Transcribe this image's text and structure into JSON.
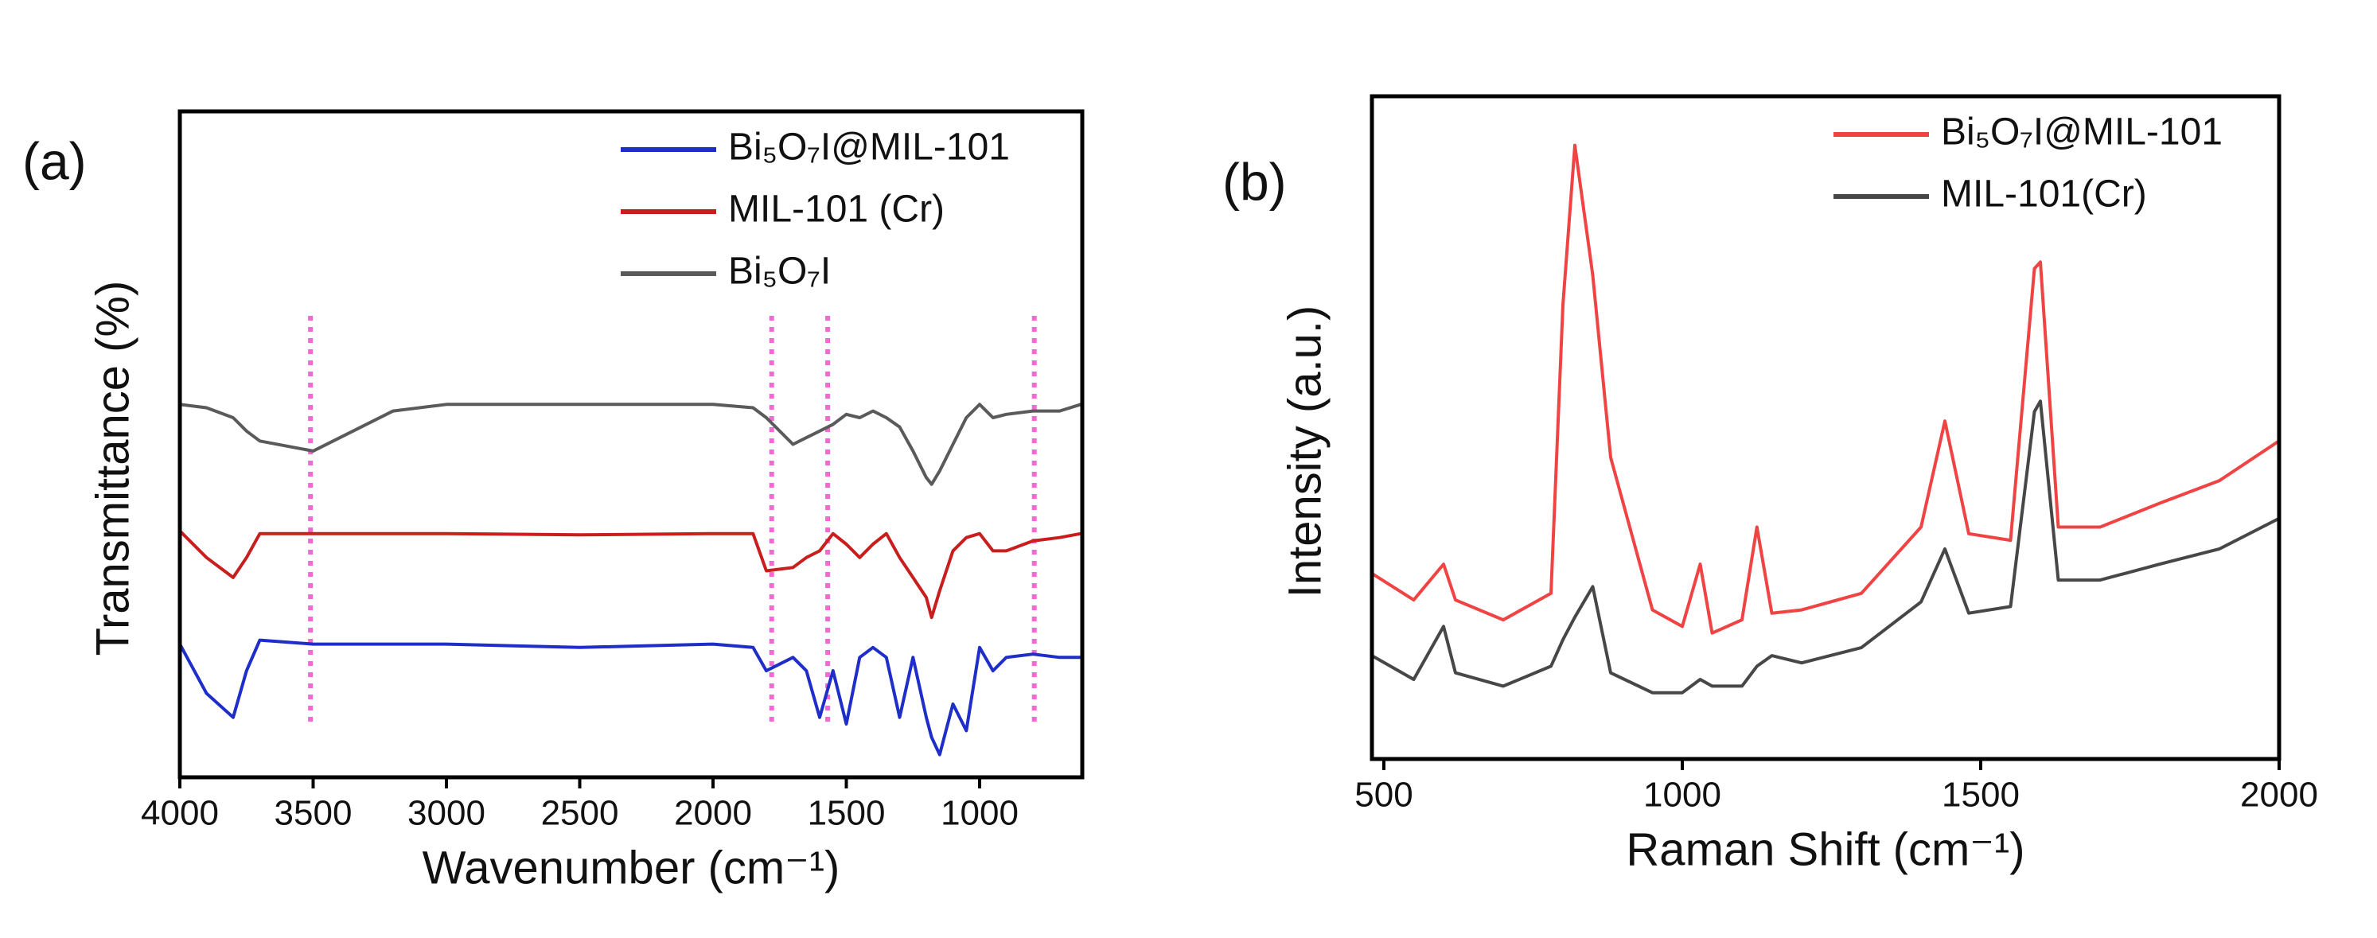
{
  "chart_data": [
    {
      "type": "line",
      "panel_label": "(a)",
      "xlabel": "Wavenumber (cm⁻¹)",
      "ylabel": "Transmittance (%)",
      "x": [
        4000,
        3900,
        3800,
        3750,
        3700,
        3500,
        3200,
        3000,
        2500,
        2000,
        1850,
        1800,
        1700,
        1650,
        1600,
        1550,
        1500,
        1450,
        1400,
        1350,
        1300,
        1250,
        1200,
        1180,
        1150,
        1100,
        1050,
        1000,
        950,
        900,
        800,
        700,
        620
      ],
      "xlim": [
        4000,
        615
      ],
      "xticks": [
        4000,
        3500,
        3000,
        2500,
        2000,
        1500,
        1000
      ],
      "ylim": [
        0,
        100
      ],
      "legend": "upper right",
      "series": [
        {
          "name": "Bi₅O₇I@MIL-101",
          "color": "#1f2ec8",
          "values": [
            20,
            12.6,
            9,
            16,
            20.6,
            20,
            20,
            20,
            19.5,
            20,
            19.5,
            16,
            18,
            16,
            9,
            16,
            8,
            18,
            19.5,
            18,
            9,
            18,
            9,
            6,
            3.4,
            11,
            7,
            19.5,
            16,
            18,
            18.5,
            18,
            18
          ]
        },
        {
          "name": "MIL-101 (Cr)",
          "color": "#c81e1e",
          "values": [
            37,
            33,
            30,
            33,
            36.6,
            36.6,
            36.6,
            36.6,
            36.4,
            36.6,
            36.6,
            31,
            31.5,
            33,
            34,
            36.6,
            35,
            33,
            35,
            36.6,
            33,
            30,
            27,
            24,
            28,
            34,
            36,
            36.6,
            34,
            34,
            35.5,
            36,
            36.6
          ]
        },
        {
          "name": "Bi₅O₇I",
          "color": "#5a5a5a",
          "values": [
            56,
            55.5,
            54,
            52,
            50.5,
            49,
            55,
            56,
            56,
            56,
            55.5,
            54,
            50,
            51,
            52,
            53,
            54.5,
            54,
            55,
            54,
            52.6,
            49,
            45,
            44,
            46,
            50,
            54,
            56,
            54,
            54.5,
            55,
            55,
            56
          ]
        }
      ],
      "markers": {
        "color": "#f06ad2",
        "values": [
          3510,
          1780,
          1570,
          795
        ]
      }
    },
    {
      "type": "line",
      "panel_label": "(b)",
      "xlabel": "Raman Shift (cm⁻¹)",
      "ylabel": "Intensity (a.u.)",
      "x": [
        480,
        550,
        600,
        620,
        700,
        780,
        800,
        820,
        850,
        880,
        950,
        1000,
        1030,
        1050,
        1100,
        1125,
        1150,
        1200,
        1300,
        1400,
        1440,
        1480,
        1550,
        1590,
        1600,
        1630,
        1700,
        1800,
        1900,
        2000
      ],
      "xlim": [
        480,
        2000
      ],
      "xticks": [
        500,
        1000,
        1500,
        2000
      ],
      "ylim": [
        0,
        100
      ],
      "legend": "upper right",
      "series": [
        {
          "name": "Bi₅O₇I@MIL-101",
          "color": "#f04444",
          "values": [
            28,
            24,
            29.4,
            24,
            21,
            25,
            68.5,
            92.6,
            73,
            45.5,
            22.5,
            20,
            29.4,
            19,
            21,
            35,
            22,
            22.5,
            25,
            35,
            51,
            34,
            33,
            74,
            75,
            35,
            35,
            38.6,
            42,
            48
          ]
        },
        {
          "name": "MIL-101(Cr)",
          "color": "#474747",
          "values": [
            15.6,
            12,
            20,
            13,
            11,
            14,
            18,
            21.4,
            26,
            13,
            10,
            10,
            12,
            11,
            11,
            14,
            15.6,
            14.5,
            16.8,
            23.7,
            31.7,
            22,
            23,
            52.4,
            54,
            27,
            27,
            29.4,
            31.7,
            36.3
          ]
        }
      ]
    }
  ]
}
